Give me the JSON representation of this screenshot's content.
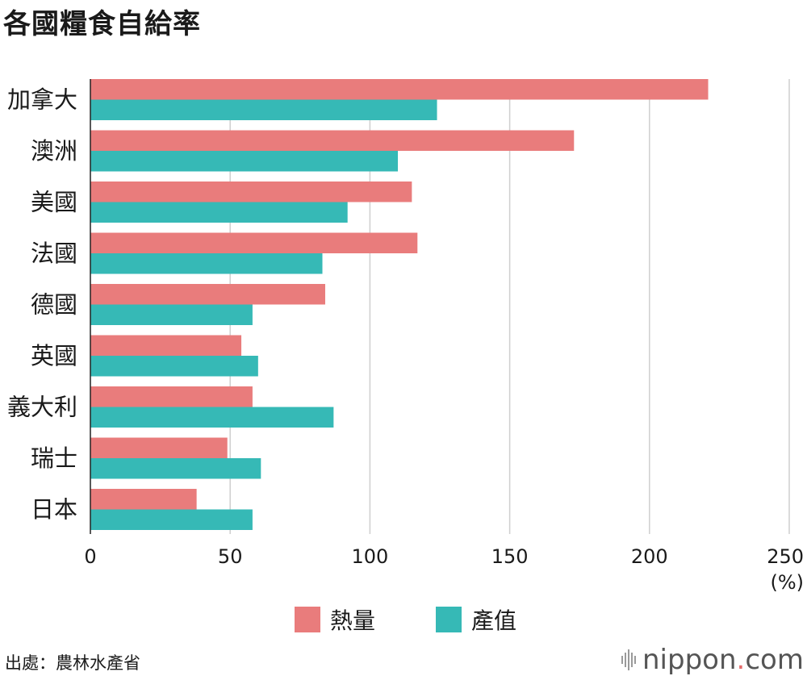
{
  "title": "各國糧食自給率",
  "source": "出處：農林水產省",
  "brand": {
    "name": "nippon",
    "dot": ".",
    "tld": "com"
  },
  "colors": {
    "calorie": "#e97c7c",
    "production": "#36b9b6",
    "grid": "#cfcfcf"
  },
  "chart_data": {
    "type": "bar",
    "orientation": "horizontal",
    "title": "各國糧食自給率",
    "categories": [
      "加拿大",
      "澳洲",
      "美國",
      "法國",
      "德國",
      "英國",
      "義大利",
      "瑞士",
      "日本"
    ],
    "series": [
      {
        "name": "熱量",
        "values": [
          221,
          173,
          115,
          117,
          84,
          54,
          58,
          49,
          38
        ]
      },
      {
        "name": "產值",
        "values": [
          124,
          110,
          92,
          83,
          58,
          60,
          87,
          61,
          58
        ]
      }
    ],
    "xlim": [
      0,
      250
    ],
    "xticks": [
      0,
      50,
      100,
      150,
      200,
      250
    ],
    "xunit": "(%)",
    "grid": true,
    "legend": "bottom"
  }
}
